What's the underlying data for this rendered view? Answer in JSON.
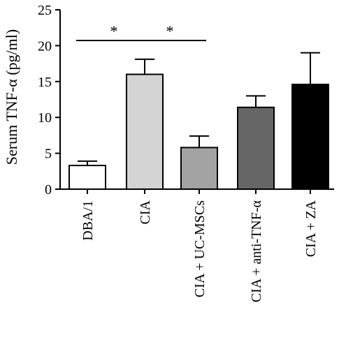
{
  "chart_data": {
    "type": "bar",
    "ylabel": "Serum TNF-α (pg/ml)",
    "ylim": [
      0,
      25
    ],
    "yticks": [
      0,
      5,
      10,
      15,
      20,
      25
    ],
    "categories": [
      "DBA/1",
      "CIA",
      "CIA + UC-MSCs",
      "CIA + anti-TNF-α",
      "CIA + ZA"
    ],
    "values": [
      3.3,
      16.0,
      5.8,
      11.4,
      14.6
    ],
    "errors": [
      0.6,
      2.1,
      1.6,
      1.6,
      4.4
    ],
    "bar_colors": [
      "#ffffff",
      "#d4d4d4",
      "#a3a3a3",
      "#666666",
      "#000000"
    ],
    "significance": [
      {
        "from": 0,
        "to": 1,
        "label": "*"
      },
      {
        "from": 1,
        "to": 2,
        "label": "*"
      }
    ]
  }
}
